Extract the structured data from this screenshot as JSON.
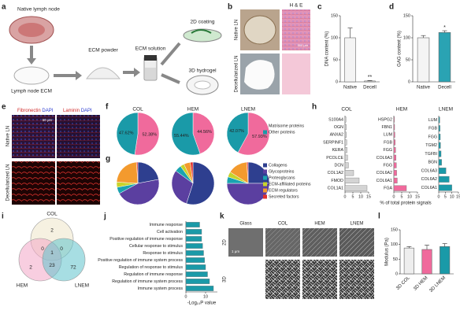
{
  "panel_letters": [
    "a",
    "b",
    "c",
    "d",
    "e",
    "f",
    "g",
    "h",
    "i",
    "j",
    "k",
    "l"
  ],
  "schematic": {
    "native_lymph_node": "Native lymph node",
    "lymph_node_ecm": "Lymph node ECM",
    "ecm_powder": "ECM powder",
    "ecm_solution": "ECM solution",
    "coating_2d": "2D coating",
    "hydrogel_3d": "3D hydrogel"
  },
  "histology": {
    "stain": "H & E",
    "rows": [
      "Native LN",
      "Decellularized LN"
    ],
    "scale_bar": "500 μm"
  },
  "immunostaining": {
    "columns": [
      {
        "stain": "Fibronectin",
        "counterstain": "DAPI"
      },
      {
        "stain": "Laminin",
        "counterstain": "DAPI"
      }
    ],
    "rows": [
      "Native LN",
      "Decellularized LN"
    ],
    "scale_bar": "50 μm"
  },
  "gel_imaging": {
    "columns": [
      "Glass",
      "COL",
      "HEM",
      "LNEM"
    ],
    "rows": [
      "2D",
      "3D"
    ],
    "scale_bar": "1 μm"
  },
  "chart_data": [
    {
      "type": "bar",
      "ylabel": "DNA content (%)",
      "categories": [
        "Native",
        "Decell"
      ],
      "values": [
        100,
        2
      ],
      "errors": [
        22,
        1
      ],
      "significance": [
        null,
        "**"
      ],
      "colors": [
        "#f4f4f4",
        "#f4f4f4"
      ],
      "ylim": [
        0,
        150
      ],
      "yticks": [
        0,
        50,
        100,
        150
      ]
    },
    {
      "type": "bar",
      "ylabel": "GAG content (%)",
      "categories": [
        "Native",
        "Decell"
      ],
      "values": [
        100,
        112
      ],
      "errors": [
        5,
        4
      ],
      "significance": [
        null,
        "*"
      ],
      "colors": [
        "#f4f4f4",
        "#2aa3b3"
      ],
      "ylim": [
        0,
        150
      ],
      "yticks": [
        0,
        50,
        100,
        150
      ]
    },
    {
      "type": "pie",
      "categories": [
        "Matrisome proteins",
        "Other proteins"
      ],
      "colors": [
        "#f06a9c",
        "#1a9aa8"
      ],
      "series": [
        {
          "name": "COL",
          "values": [
            52.38,
            47.62
          ],
          "value_labels": [
            "52.38%",
            "47.62%"
          ]
        },
        {
          "name": "HEM",
          "values": [
            44.56,
            55.44
          ],
          "value_labels": [
            "44.56%",
            "55.44%"
          ]
        },
        {
          "name": "LNEM",
          "values": [
            57.93,
            42.07
          ],
          "value_labels": [
            "57.93%",
            "42.07%"
          ]
        }
      ]
    },
    {
      "type": "pie",
      "categories": [
        "Collagens",
        "Glycoproteins",
        "Proteoglycans",
        "ECM-affiliated proteins",
        "ECM regulators",
        "Secreted factors"
      ],
      "colors": [
        "#2e3f8f",
        "#5b3fa0",
        "#1aa3b0",
        "#c8d42a",
        "#f39a2e",
        "#e0302e"
      ],
      "series": [
        {
          "values": [
            22,
            45,
            5,
            4,
            23,
            1
          ]
        },
        {
          "values": [
            55,
            30,
            5,
            3,
            5,
            2
          ]
        },
        {
          "values": [
            25,
            50,
            5,
            4,
            15,
            1
          ]
        }
      ]
    },
    {
      "type": "hbar",
      "title": "COL",
      "color": "#d4d4d4",
      "categories": [
        "S100A4",
        "OGN",
        "ANXA2",
        "SERPINF1",
        "KERA",
        "PCOLCE",
        "DCN",
        "COL1A2",
        "FMOD",
        "COL1A1"
      ],
      "values": [
        0.6,
        0.8,
        0.9,
        1.1,
        1.3,
        1.6,
        2.2,
        5.5,
        9,
        14
      ],
      "xlim": [
        0,
        15
      ],
      "xticks": [
        0,
        5,
        10,
        15
      ]
    },
    {
      "type": "hbar",
      "title": "HEM",
      "color": "#f06a9c",
      "categories": [
        "HSPG2",
        "FBN1",
        "LUM",
        "FGB",
        "FGG",
        "COL6A3",
        "FGG",
        "COL6A2",
        "COL6A1",
        "FGA"
      ],
      "values": [
        0.4,
        0.5,
        0.7,
        0.9,
        1.1,
        1.4,
        1.6,
        1.8,
        2.2,
        8
      ],
      "xlim": [
        0,
        15
      ],
      "xticks": [
        0,
        5,
        10,
        15
      ],
      "xlabel": "% of total protein signals"
    },
    {
      "type": "hbar",
      "title": "LNEM",
      "color": "#1a9aa8",
      "categories": [
        "LUM",
        "FGB",
        "FGG",
        "TGM2",
        "TGFBI",
        "BGN",
        "COL6A3",
        "COL6A2",
        "COL6A1"
      ],
      "values": [
        0.8,
        1,
        1.2,
        1.4,
        1.8,
        2.2,
        5.5,
        8,
        10
      ],
      "xlim": [
        0,
        15
      ],
      "xticks": [
        0,
        5,
        10,
        15
      ]
    },
    {
      "type": "hbar",
      "color": "#1a9aa8",
      "categories": [
        "Immune response",
        "Cell activation",
        "Positive regulation of immune response",
        "Cellular response to stimulus",
        "Response to stimulus",
        "Positive regulation of immune system process",
        "Regulation of response to stimulus",
        "Regulation of immune response",
        "Regulation of immune system process",
        "Immune system process"
      ],
      "values": [
        7,
        8,
        8,
        8.5,
        9,
        9.5,
        10,
        11,
        12,
        14
      ],
      "xlim": [
        0,
        16
      ],
      "xticks": [
        0,
        10
      ],
      "xlabel": "-Log₁₀P value"
    },
    {
      "type": "bar",
      "ylabel": "Modulus (Pa)",
      "categories": [
        "3D COL",
        "3D HEM",
        "3D LNEM"
      ],
      "values": [
        88,
        83,
        93
      ],
      "errors": [
        5,
        15,
        10
      ],
      "colors": [
        "#eeeeee",
        "#f06a9c",
        "#1a9aa8"
      ],
      "ylim": [
        0,
        150
      ],
      "yticks": [
        0,
        50,
        100,
        150
      ]
    },
    {
      "type": "venn",
      "sets": [
        "COL",
        "HEM",
        "LNEM"
      ],
      "colors": [
        "#efe6c8",
        "#f3a6c6",
        "#5fc3cc"
      ],
      "regions": [
        {
          "sets": [
            0
          ],
          "count": 2
        },
        {
          "sets": [
            1
          ],
          "count": 2
        },
        {
          "sets": [
            2
          ],
          "count": 72
        },
        {
          "sets": [
            0,
            1
          ],
          "count": 0
        },
        {
          "sets": [
            0,
            2
          ],
          "count": 0
        },
        {
          "sets": [
            1,
            2
          ],
          "count": 23
        },
        {
          "sets": [
            0,
            1,
            2
          ],
          "count": 1
        }
      ]
    }
  ]
}
